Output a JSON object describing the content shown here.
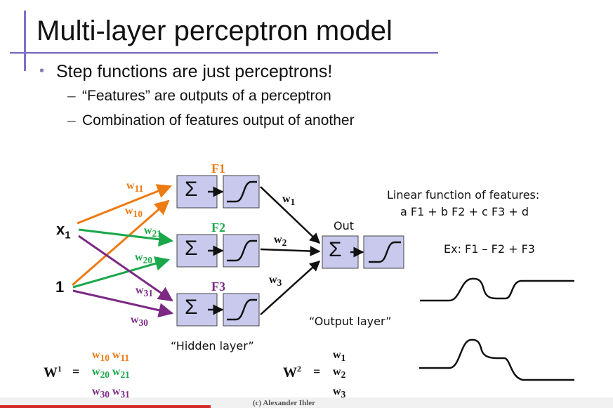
{
  "title": "Multi-layer perceptron model",
  "bullet": "Step functions are just perceptrons!",
  "sub_bullets": [
    "“Features” are outputs of a perceptron",
    "Combination of features output of another"
  ],
  "inputs": {
    "x_base": "x",
    "x_sub": "1",
    "one": "1"
  },
  "features": [
    {
      "label": "F1",
      "color": "#ee7a12"
    },
    {
      "label": "F2",
      "color": "#1aa84a"
    },
    {
      "label": "F3",
      "color": "#7c2a84"
    }
  ],
  "sigma": "Σ",
  "weights_in": [
    {
      "base": "w",
      "sub": "11",
      "color": "#ee7a12"
    },
    {
      "base": "w",
      "sub": "10",
      "color": "#ee7a12"
    },
    {
      "base": "w",
      "sub": "21",
      "color": "#1aa84a"
    },
    {
      "base": "w",
      "sub": "20",
      "color": "#1aa84a"
    },
    {
      "base": "w",
      "sub": "31",
      "color": "#7c2a84"
    },
    {
      "base": "w",
      "sub": "30",
      "color": "#7c2a84"
    }
  ],
  "weights_out": [
    {
      "base": "w",
      "sub": "1"
    },
    {
      "base": "w",
      "sub": "2"
    },
    {
      "base": "w",
      "sub": "3"
    }
  ],
  "out_label": "Out",
  "hidden_layer": "“Hidden layer”",
  "output_layer": "“Output layer”",
  "linear_fn": [
    "Linear function of features:",
    "a F1 + b F2 + c F3 + d"
  ],
  "example": "Ex:  F1 – F2 + F3",
  "W1": {
    "base": "W",
    "sup": "1",
    "eq": "="
  },
  "W1_matrix": [
    [
      {
        "base": "w",
        "sub": "10",
        "color": "#ee7a12"
      },
      {
        "base": "w",
        "sub": "11",
        "color": "#ee7a12"
      }
    ],
    [
      {
        "base": "w",
        "sub": "20",
        "color": "#1aa84a"
      },
      {
        "base": "w",
        "sub": "21",
        "color": "#1aa84a"
      }
    ],
    [
      {
        "base": "w",
        "sub": "30",
        "color": "#7c2a84"
      },
      {
        "base": "w",
        "sub": "31",
        "color": "#7c2a84"
      }
    ]
  ],
  "W2": {
    "base": "W",
    "sup": "2",
    "eq": "="
  },
  "W2_matrix": [
    {
      "base": "w",
      "sub": "1"
    },
    {
      "base": "w",
      "sub": "2"
    },
    {
      "base": "w",
      "sub": "3"
    }
  ],
  "copyright": "(c) Alexander Ihler",
  "colors": {
    "box_fill": "#c9c9ee",
    "accent_bar": "#7d72c8",
    "footer_red": "#d42a2a"
  }
}
